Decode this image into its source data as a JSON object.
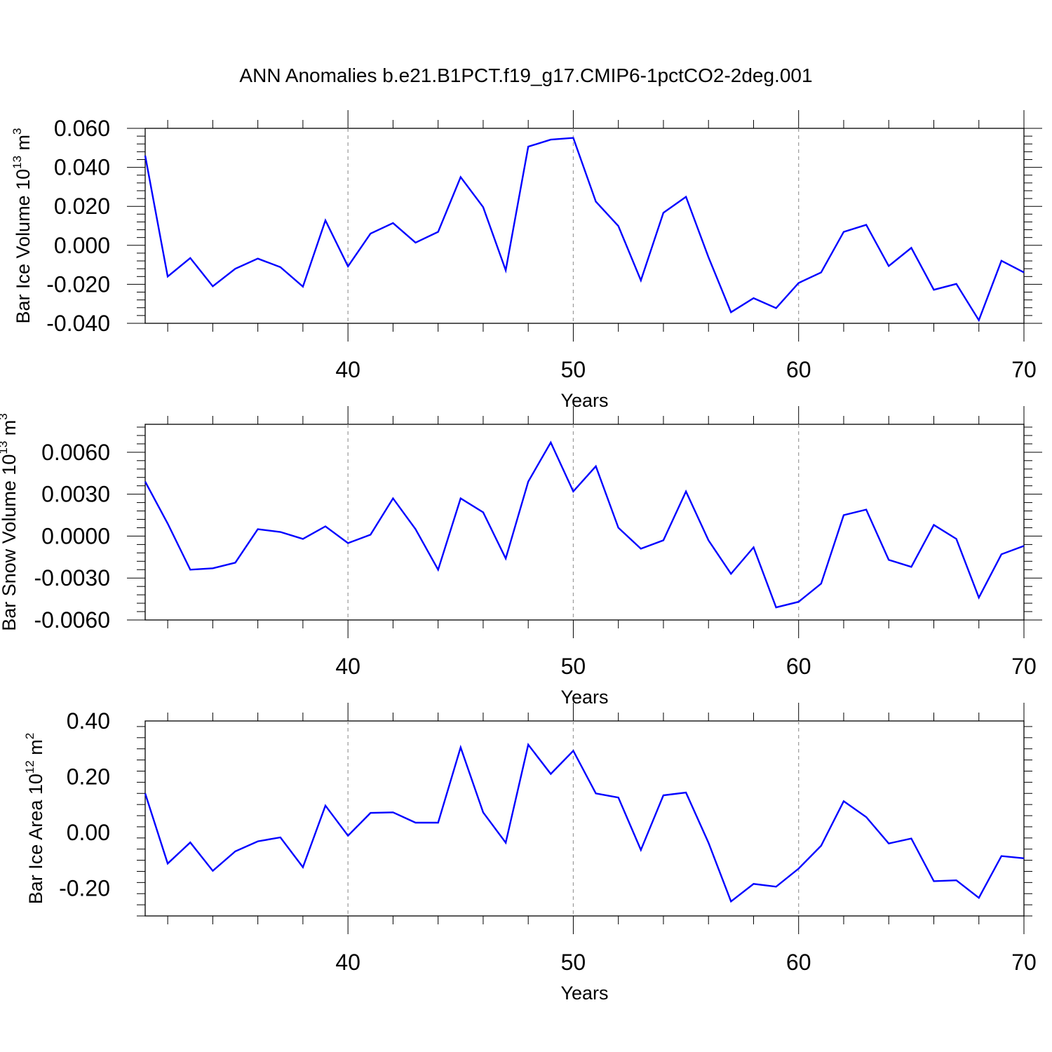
{
  "title": "ANN Anomalies b.e21.B1PCT.f19_g17.CMIP6-1pctCO2-2deg.001",
  "colors": {
    "line": "#0000ff",
    "axis": "#000000",
    "grid": "#999999"
  },
  "chart_data": [
    {
      "type": "line",
      "ylabel": "Bar Ice Volume 10",
      "ylabel_sup": "13",
      "ylabel_unit": " m",
      "ylabel_unit_sup": "3",
      "xlabel": "Years",
      "xlim": [
        31,
        70
      ],
      "ylim": [
        -0.04,
        0.06
      ],
      "yticks": [
        -0.04,
        -0.02,
        0.0,
        0.02,
        0.04,
        0.06
      ],
      "ytick_labels": [
        "-0.040",
        "-0.020",
        "0.000",
        "0.020",
        "0.040",
        "0.060"
      ],
      "xticks": [
        40,
        50,
        60,
        70
      ],
      "xtick_labels": [
        "40",
        "50",
        "60",
        "70"
      ],
      "grid_x": [
        40,
        50,
        60
      ],
      "x": [
        31,
        32,
        33,
        34,
        35,
        36,
        37,
        38,
        39,
        40,
        41,
        42,
        43,
        44,
        45,
        46,
        47,
        48,
        49,
        50,
        51,
        52,
        53,
        54,
        55,
        56,
        57,
        58,
        59,
        60,
        61,
        62,
        63,
        64,
        65,
        66,
        67,
        68,
        69,
        70
      ],
      "values": [
        0.046,
        -0.016,
        -0.0065,
        -0.021,
        -0.012,
        -0.0068,
        -0.0112,
        -0.0212,
        0.0128,
        -0.0108,
        0.006,
        0.0114,
        0.0014,
        0.0069,
        0.035,
        0.0196,
        -0.0128,
        0.0506,
        0.0542,
        0.0551,
        0.0224,
        0.0099,
        -0.018,
        0.0167,
        0.0249,
        -0.0061,
        -0.0343,
        -0.0271,
        -0.0322,
        -0.0193,
        -0.0139,
        0.0069,
        0.0105,
        -0.0106,
        -0.0013,
        -0.0228,
        -0.0198,
        -0.0384,
        -0.0079,
        -0.0139
      ]
    },
    {
      "type": "line",
      "ylabel": "Bar Snow Volume 10",
      "ylabel_sup": "13",
      "ylabel_unit": " m",
      "ylabel_unit_sup": "3",
      "xlabel": "Years",
      "xlim": [
        31,
        70
      ],
      "ylim": [
        -0.006,
        0.008
      ],
      "yticks": [
        -0.006,
        -0.003,
        0.0,
        0.003,
        0.006
      ],
      "ytick_labels": [
        "-0.0060",
        "-0.0030",
        "0.0000",
        "0.0030",
        "0.0060"
      ],
      "xticks": [
        40,
        50,
        60,
        70
      ],
      "xtick_labels": [
        "40",
        "50",
        "60",
        "70"
      ],
      "grid_x": [
        40,
        50,
        60
      ],
      "x": [
        31,
        32,
        33,
        34,
        35,
        36,
        37,
        38,
        39,
        40,
        41,
        42,
        43,
        44,
        45,
        46,
        47,
        48,
        49,
        50,
        51,
        52,
        53,
        54,
        55,
        56,
        57,
        58,
        59,
        60,
        61,
        62,
        63,
        64,
        65,
        66,
        67,
        68,
        69,
        70
      ],
      "values": [
        0.0039,
        0.0009,
        -0.0024,
        -0.0023,
        -0.0019,
        0.0005,
        0.0003,
        -0.0002,
        0.0007,
        -0.0005,
        0.0001,
        0.0027,
        0.0005,
        -0.0024,
        0.0027,
        0.0017,
        -0.0016,
        0.0039,
        0.0067,
        0.0032,
        0.005,
        0.0006,
        -0.0009,
        -0.0003,
        0.0032,
        -0.0003,
        -0.0027,
        -0.0008,
        -0.0051,
        -0.0047,
        -0.0034,
        0.0015,
        0.0019,
        -0.0017,
        -0.0022,
        0.0008,
        -0.0002,
        -0.0044,
        -0.0013,
        -0.0007
      ]
    },
    {
      "type": "line",
      "ylabel": "Bar Ice Area 10",
      "ylabel_sup": "12",
      "ylabel_unit": " m",
      "ylabel_unit_sup": "2",
      "xlabel": "Years",
      "xlim": [
        31,
        70
      ],
      "ylim": [
        -0.3,
        0.4
      ],
      "yticks": [
        -0.2,
        0.0,
        0.2,
        0.4
      ],
      "ytick_labels": [
        "-0.20",
        "0.00",
        "0.20",
        "0.40"
      ],
      "xticks": [
        40,
        50,
        60,
        70
      ],
      "xtick_labels": [
        "40",
        "50",
        "60",
        "70"
      ],
      "grid_x": [
        40,
        50,
        60
      ],
      "x": [
        31,
        32,
        33,
        34,
        35,
        36,
        37,
        38,
        39,
        40,
        41,
        42,
        43,
        44,
        45,
        46,
        47,
        48,
        49,
        50,
        51,
        52,
        53,
        54,
        55,
        56,
        57,
        58,
        59,
        60,
        61,
        62,
        63,
        64,
        65,
        66,
        67,
        68,
        69,
        70
      ],
      "values": [
        0.14,
        -0.112,
        -0.036,
        -0.138,
        -0.068,
        -0.032,
        -0.018,
        -0.125,
        0.096,
        -0.012,
        0.07,
        0.072,
        0.035,
        0.035,
        0.305,
        0.072,
        -0.037,
        0.315,
        0.21,
        0.293,
        0.14,
        0.125,
        -0.063,
        0.133,
        0.143,
        -0.037,
        -0.248,
        -0.185,
        -0.195,
        -0.13,
        -0.048,
        0.112,
        0.055,
        -0.04,
        -0.022,
        -0.175,
        -0.172,
        -0.235,
        -0.085,
        -0.093
      ]
    }
  ]
}
